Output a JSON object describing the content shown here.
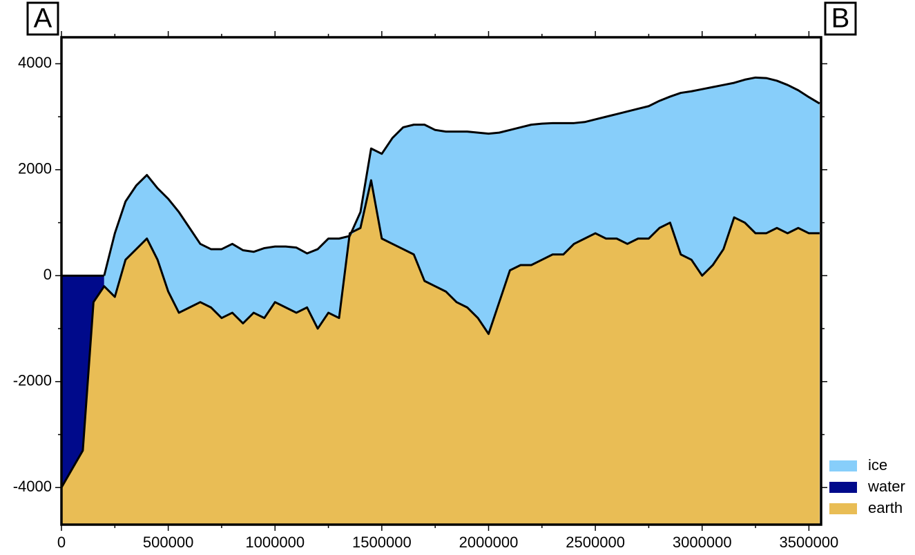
{
  "chart_data": {
    "type": "area",
    "annotations": [
      "A",
      "B"
    ],
    "x": [
      0,
      50000,
      100000,
      150000,
      200000,
      250000,
      300000,
      350000,
      400000,
      450000,
      500000,
      550000,
      600000,
      650000,
      700000,
      750000,
      800000,
      850000,
      900000,
      950000,
      1000000,
      1050000,
      1100000,
      1150000,
      1200000,
      1250000,
      1300000,
      1350000,
      1400000,
      1450000,
      1500000,
      1550000,
      1600000,
      1650000,
      1700000,
      1750000,
      1800000,
      1850000,
      1900000,
      1950000,
      2000000,
      2050000,
      2100000,
      2150000,
      2200000,
      2250000,
      2300000,
      2350000,
      2400000,
      2450000,
      2500000,
      2550000,
      2600000,
      2650000,
      2700000,
      2750000,
      2800000,
      2850000,
      2900000,
      2950000,
      3000000,
      3050000,
      3100000,
      3150000,
      3200000,
      3250000,
      3300000,
      3350000,
      3400000,
      3450000,
      3500000,
      3550000
    ],
    "series": [
      {
        "name": "ice",
        "color": "#87cefa",
        "values": [
          null,
          null,
          null,
          null,
          0,
          800,
          1400,
          1700,
          1900,
          1650,
          1450,
          1200,
          900,
          600,
          500,
          500,
          600,
          480,
          450,
          520,
          550,
          550,
          530,
          420,
          500,
          700,
          700,
          750,
          1200,
          2400,
          2300,
          2600,
          2800,
          2850,
          2850,
          2750,
          2720,
          2720,
          2720,
          2700,
          2680,
          2700,
          2750,
          2800,
          2850,
          2870,
          2880,
          2880,
          2880,
          2900,
          2950,
          3000,
          3050,
          3100,
          3150,
          3200,
          3300,
          3380,
          3450,
          3480,
          3520,
          3560,
          3600,
          3640,
          3700,
          3740,
          3730,
          3680,
          3600,
          3500,
          3370,
          3250
        ]
      },
      {
        "name": "water",
        "color": "#000a8b",
        "values": [
          0,
          0,
          0,
          0,
          0,
          null,
          null,
          null,
          null,
          null,
          null,
          null,
          null,
          null,
          null,
          null,
          null,
          null,
          null,
          null,
          null,
          null,
          null,
          null,
          null,
          null,
          null,
          null,
          null,
          null,
          null,
          null,
          null,
          null,
          null,
          null,
          null,
          null,
          null,
          null,
          null,
          null,
          null,
          null,
          null,
          null,
          null,
          null,
          null,
          null,
          null,
          null,
          null,
          null,
          null,
          null,
          null,
          null,
          null,
          null,
          null,
          null,
          null,
          null,
          null,
          null,
          null,
          null,
          null,
          null,
          null,
          null
        ]
      },
      {
        "name": "earth",
        "color": "#e9bd55",
        "values": [
          -4000,
          -3650,
          -3300,
          -500,
          -200,
          -400,
          300,
          500,
          700,
          300,
          -300,
          -700,
          -600,
          -500,
          -600,
          -800,
          -700,
          -900,
          -700,
          -800,
          -500,
          -600,
          -700,
          -600,
          -1000,
          -700,
          -800,
          800,
          900,
          1800,
          700,
          600,
          500,
          400,
          -100,
          -200,
          -300,
          -500,
          -600,
          -800,
          -1100,
          -500,
          100,
          200,
          200,
          300,
          400,
          400,
          600,
          700,
          800,
          700,
          700,
          600,
          700,
          700,
          900,
          1000,
          400,
          300,
          0,
          200,
          500,
          1100,
          1000,
          800,
          800,
          900,
          800,
          900,
          800,
          800
        ]
      }
    ],
    "xlim": [
      0,
      3557000
    ],
    "ylim": [
      -4700,
      4500
    ],
    "xticks": [
      0,
      500000,
      1000000,
      1500000,
      2000000,
      2500000,
      3000000,
      3500000
    ],
    "xminorticks": [
      250000,
      750000,
      1250000,
      1750000,
      2250000,
      2750000,
      3250000
    ],
    "yticks": [
      -4000,
      -2000,
      0,
      2000,
      4000
    ],
    "yminorticks": [
      -3000,
      -1000,
      1000,
      3000
    ]
  }
}
